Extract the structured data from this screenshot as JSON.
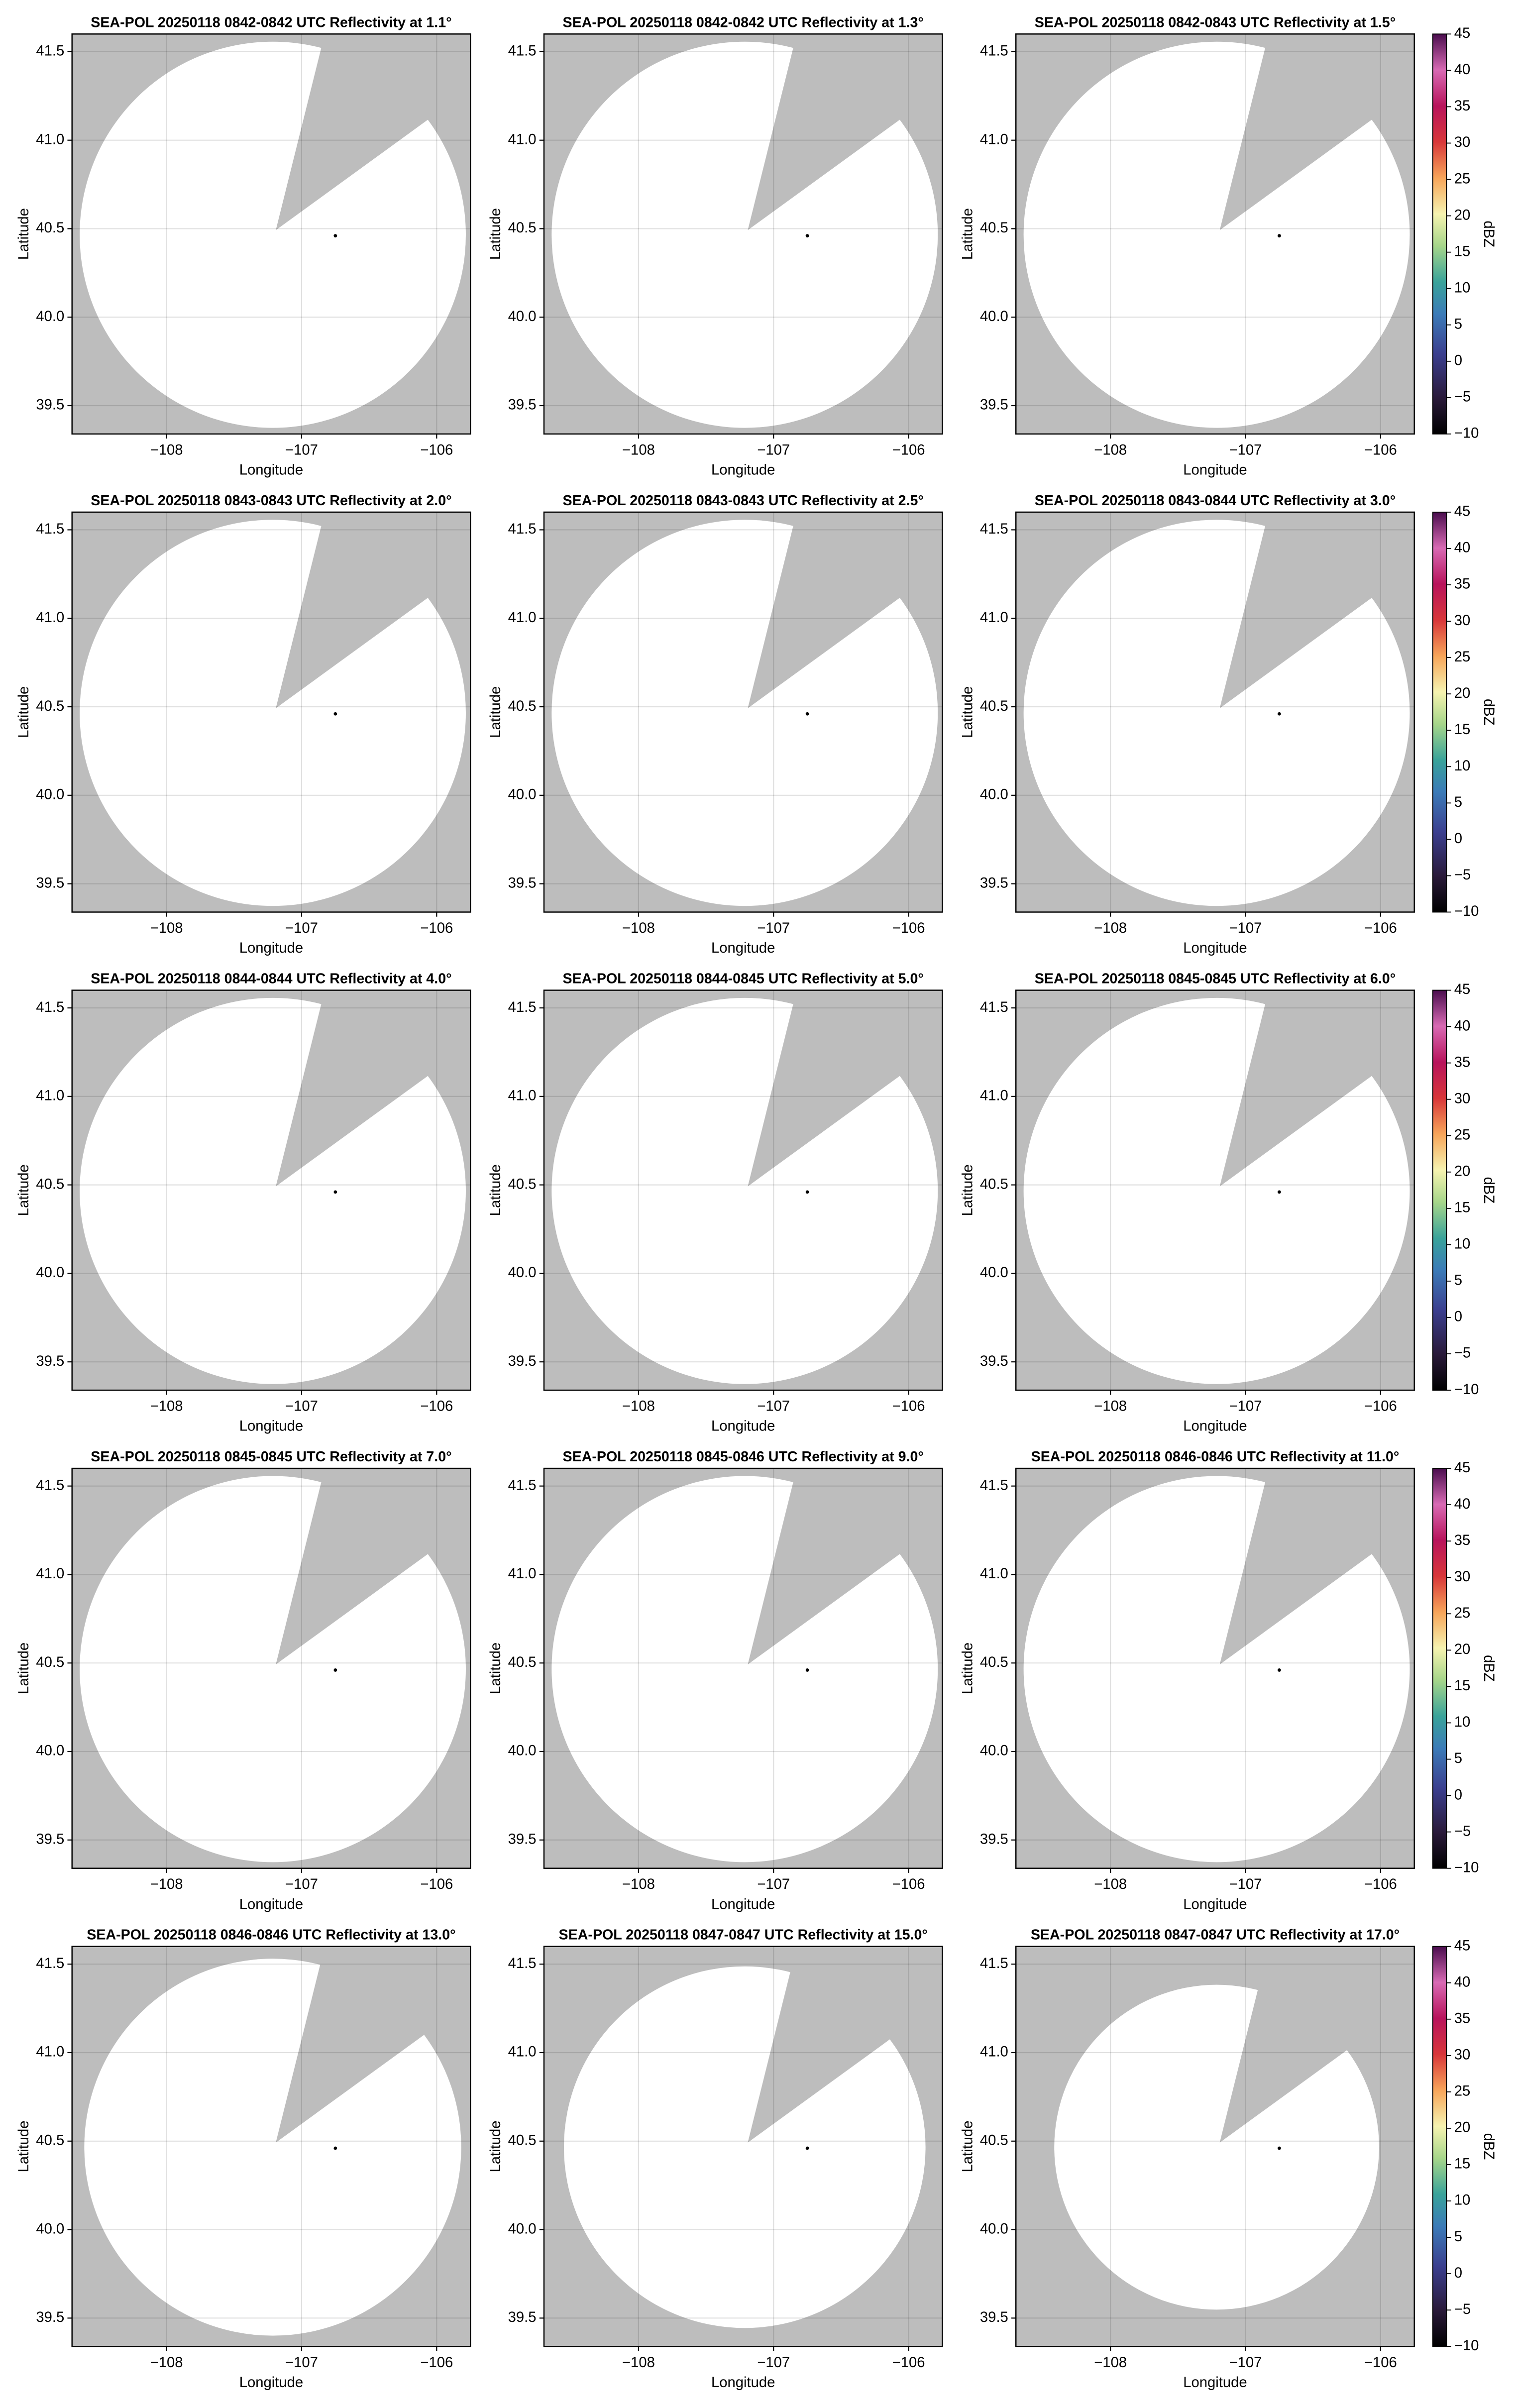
{
  "chart_data": [
    {
      "type": "radar-ppi",
      "title": "SEA-POL 20250118 0842-0842 UTC Reflectivity at 1.1°",
      "xlabel": "Longitude",
      "ylabel": "Latitude",
      "xlim": [
        -108.7,
        -105.75
      ],
      "ylim": [
        39.34,
        41.6
      ],
      "xticks": [
        {
          "value": -108,
          "label": "−108"
        },
        {
          "value": -107,
          "label": "−107"
        },
        {
          "value": -106,
          "label": "−106"
        }
      ],
      "yticks": [
        39.5,
        {
          "value": 40,
          "label": "40.0"
        },
        40.5,
        {
          "value": 41,
          "label": "41.0"
        },
        41.5
      ],
      "grid": true,
      "site": {
        "x": -106.75,
        "y": 40.46
      }
    },
    {
      "type": "radar-ppi",
      "title": "SEA-POL 20250118 0842-0842 UTC Reflectivity at 1.3°",
      "xlabel": "Longitude",
      "ylabel": "Latitude",
      "xlim": [
        -108.7,
        -105.75
      ],
      "ylim": [
        39.34,
        41.6
      ],
      "xticks": [
        {
          "value": -108,
          "label": "−108"
        },
        {
          "value": -107,
          "label": "−107"
        },
        {
          "value": -106,
          "label": "−106"
        }
      ],
      "yticks": [
        39.5,
        {
          "value": 40,
          "label": "40.0"
        },
        40.5,
        {
          "value": 41,
          "label": "41.0"
        },
        41.5
      ],
      "grid": true,
      "site": {
        "x": -106.75,
        "y": 40.46
      }
    },
    {
      "type": "radar-ppi",
      "title": "SEA-POL 20250118 0842-0843 UTC Reflectivity at 1.5°",
      "xlabel": "Longitude",
      "ylabel": "Latitude",
      "xlim": [
        -108.7,
        -105.75
      ],
      "ylim": [
        39.34,
        41.6
      ],
      "xticks": [
        {
          "value": -108,
          "label": "−108"
        },
        {
          "value": -107,
          "label": "−107"
        },
        {
          "value": -106,
          "label": "−106"
        }
      ],
      "yticks": [
        39.5,
        {
          "value": 40,
          "label": "40.0"
        },
        40.5,
        {
          "value": 41,
          "label": "41.0"
        },
        41.5
      ],
      "grid": true,
      "site": {
        "x": -106.75,
        "y": 40.46
      },
      "colorbar": {
        "label": "dBZ",
        "lim": [
          -10,
          45
        ],
        "ticks": [
          {
            "value": -10,
            "label": "−10"
          },
          {
            "value": -5,
            "label": "−5"
          },
          0,
          5,
          10,
          15,
          20,
          25,
          30,
          35,
          40,
          45
        ]
      }
    },
    {
      "type": "radar-ppi",
      "title": "SEA-POL 20250118 0843-0843 UTC Reflectivity at 2.0°",
      "xlabel": "Longitude",
      "ylabel": "Latitude",
      "xlim": [
        -108.7,
        -105.75
      ],
      "ylim": [
        39.34,
        41.6
      ],
      "xticks": [
        {
          "value": -108,
          "label": "−108"
        },
        {
          "value": -107,
          "label": "−107"
        },
        {
          "value": -106,
          "label": "−106"
        }
      ],
      "yticks": [
        39.5,
        {
          "value": 40,
          "label": "40.0"
        },
        40.5,
        {
          "value": 41,
          "label": "41.0"
        },
        41.5
      ],
      "grid": true,
      "site": {
        "x": -106.75,
        "y": 40.46
      }
    },
    {
      "type": "radar-ppi",
      "title": "SEA-POL 20250118 0843-0843 UTC Reflectivity at 2.5°",
      "xlabel": "Longitude",
      "ylabel": "Latitude",
      "xlim": [
        -108.7,
        -105.75
      ],
      "ylim": [
        39.34,
        41.6
      ],
      "xticks": [
        {
          "value": -108,
          "label": "−108"
        },
        {
          "value": -107,
          "label": "−107"
        },
        {
          "value": -106,
          "label": "−106"
        }
      ],
      "yticks": [
        39.5,
        {
          "value": 40,
          "label": "40.0"
        },
        40.5,
        {
          "value": 41,
          "label": "41.0"
        },
        41.5
      ],
      "grid": true,
      "site": {
        "x": -106.75,
        "y": 40.46
      }
    },
    {
      "type": "radar-ppi",
      "title": "SEA-POL 20250118 0843-0844 UTC Reflectivity at 3.0°",
      "xlabel": "Longitude",
      "ylabel": "Latitude",
      "xlim": [
        -108.7,
        -105.75
      ],
      "ylim": [
        39.34,
        41.6
      ],
      "xticks": [
        {
          "value": -108,
          "label": "−108"
        },
        {
          "value": -107,
          "label": "−107"
        },
        {
          "value": -106,
          "label": "−106"
        }
      ],
      "yticks": [
        39.5,
        {
          "value": 40,
          "label": "40.0"
        },
        40.5,
        {
          "value": 41,
          "label": "41.0"
        },
        41.5
      ],
      "grid": true,
      "site": {
        "x": -106.75,
        "y": 40.46
      },
      "colorbar": {
        "label": "dBZ",
        "lim": [
          -10,
          45
        ],
        "ticks": [
          {
            "value": -10,
            "label": "−10"
          },
          {
            "value": -5,
            "label": "−5"
          },
          0,
          5,
          10,
          15,
          20,
          25,
          30,
          35,
          40,
          45
        ]
      }
    },
    {
      "type": "radar-ppi",
      "title": "SEA-POL 20250118 0844-0844 UTC Reflectivity at 4.0°",
      "xlabel": "Longitude",
      "ylabel": "Latitude",
      "xlim": [
        -108.7,
        -105.75
      ],
      "ylim": [
        39.34,
        41.6
      ],
      "xticks": [
        {
          "value": -108,
          "label": "−108"
        },
        {
          "value": -107,
          "label": "−107"
        },
        {
          "value": -106,
          "label": "−106"
        }
      ],
      "yticks": [
        39.5,
        {
          "value": 40,
          "label": "40.0"
        },
        40.5,
        {
          "value": 41,
          "label": "41.0"
        },
        41.5
      ],
      "grid": true,
      "site": {
        "x": -106.75,
        "y": 40.46
      }
    },
    {
      "type": "radar-ppi",
      "title": "SEA-POL 20250118 0844-0845 UTC Reflectivity at 5.0°",
      "xlabel": "Longitude",
      "ylabel": "Latitude",
      "xlim": [
        -108.7,
        -105.75
      ],
      "ylim": [
        39.34,
        41.6
      ],
      "xticks": [
        {
          "value": -108,
          "label": "−108"
        },
        {
          "value": -107,
          "label": "−107"
        },
        {
          "value": -106,
          "label": "−106"
        }
      ],
      "yticks": [
        39.5,
        {
          "value": 40,
          "label": "40.0"
        },
        40.5,
        {
          "value": 41,
          "label": "41.0"
        },
        41.5
      ],
      "grid": true,
      "site": {
        "x": -106.75,
        "y": 40.46
      }
    },
    {
      "type": "radar-ppi",
      "title": "SEA-POL 20250118 0845-0845 UTC Reflectivity at 6.0°",
      "xlabel": "Longitude",
      "ylabel": "Latitude",
      "xlim": [
        -108.7,
        -105.75
      ],
      "ylim": [
        39.34,
        41.6
      ],
      "xticks": [
        {
          "value": -108,
          "label": "−108"
        },
        {
          "value": -107,
          "label": "−107"
        },
        {
          "value": -106,
          "label": "−106"
        }
      ],
      "yticks": [
        39.5,
        {
          "value": 40,
          "label": "40.0"
        },
        40.5,
        {
          "value": 41,
          "label": "41.0"
        },
        41.5
      ],
      "grid": true,
      "site": {
        "x": -106.75,
        "y": 40.46
      },
      "colorbar": {
        "label": "dBZ",
        "lim": [
          -10,
          45
        ],
        "ticks": [
          {
            "value": -10,
            "label": "−10"
          },
          {
            "value": -5,
            "label": "−5"
          },
          0,
          5,
          10,
          15,
          20,
          25,
          30,
          35,
          40,
          45
        ]
      }
    },
    {
      "type": "radar-ppi",
      "title": "SEA-POL 20250118 0845-0845 UTC Reflectivity at 7.0°",
      "xlabel": "Longitude",
      "ylabel": "Latitude",
      "xlim": [
        -108.7,
        -105.75
      ],
      "ylim": [
        39.34,
        41.6
      ],
      "xticks": [
        {
          "value": -108,
          "label": "−108"
        },
        {
          "value": -107,
          "label": "−107"
        },
        {
          "value": -106,
          "label": "−106"
        }
      ],
      "yticks": [
        39.5,
        {
          "value": 40,
          "label": "40.0"
        },
        40.5,
        {
          "value": 41,
          "label": "41.0"
        },
        41.5
      ],
      "grid": true,
      "site": {
        "x": -106.75,
        "y": 40.46
      }
    },
    {
      "type": "radar-ppi",
      "title": "SEA-POL 20250118 0845-0846 UTC Reflectivity at 9.0°",
      "xlabel": "Longitude",
      "ylabel": "Latitude",
      "xlim": [
        -108.7,
        -105.75
      ],
      "ylim": [
        39.34,
        41.6
      ],
      "xticks": [
        {
          "value": -108,
          "label": "−108"
        },
        {
          "value": -107,
          "label": "−107"
        },
        {
          "value": -106,
          "label": "−106"
        }
      ],
      "yticks": [
        39.5,
        {
          "value": 40,
          "label": "40.0"
        },
        40.5,
        {
          "value": 41,
          "label": "41.0"
        },
        41.5
      ],
      "grid": true,
      "site": {
        "x": -106.75,
        "y": 40.46
      }
    },
    {
      "type": "radar-ppi",
      "title": "SEA-POL 20250118 0846-0846 UTC Reflectivity at 11.0°",
      "xlabel": "Longitude",
      "ylabel": "Latitude",
      "xlim": [
        -108.7,
        -105.75
      ],
      "ylim": [
        39.34,
        41.6
      ],
      "xticks": [
        {
          "value": -108,
          "label": "−108"
        },
        {
          "value": -107,
          "label": "−107"
        },
        {
          "value": -106,
          "label": "−106"
        }
      ],
      "yticks": [
        39.5,
        {
          "value": 40,
          "label": "40.0"
        },
        40.5,
        {
          "value": 41,
          "label": "41.0"
        },
        41.5
      ],
      "grid": true,
      "site": {
        "x": -106.75,
        "y": 40.46
      },
      "colorbar": {
        "label": "dBZ",
        "lim": [
          -10,
          45
        ],
        "ticks": [
          {
            "value": -10,
            "label": "−10"
          },
          {
            "value": -5,
            "label": "−5"
          },
          0,
          5,
          10,
          15,
          20,
          25,
          30,
          35,
          40,
          45
        ]
      }
    },
    {
      "type": "radar-ppi",
      "title": "SEA-POL 20250118 0846-0846 UTC Reflectivity at 13.0°",
      "xlabel": "Longitude",
      "ylabel": "Latitude",
      "xlim": [
        -108.7,
        -105.75
      ],
      "ylim": [
        39.34,
        41.6
      ],
      "xticks": [
        {
          "value": -108,
          "label": "−108"
        },
        {
          "value": -107,
          "label": "−107"
        },
        {
          "value": -106,
          "label": "−106"
        }
      ],
      "yticks": [
        39.5,
        {
          "value": 40,
          "label": "40.0"
        },
        40.5,
        {
          "value": 41,
          "label": "41.0"
        },
        41.5
      ],
      "grid": true,
      "site": {
        "x": -106.75,
        "y": 40.46
      }
    },
    {
      "type": "radar-ppi",
      "title": "SEA-POL 20250118 0847-0847 UTC Reflectivity at 15.0°",
      "xlabel": "Longitude",
      "ylabel": "Latitude",
      "xlim": [
        -108.7,
        -105.75
      ],
      "ylim": [
        39.34,
        41.6
      ],
      "xticks": [
        {
          "value": -108,
          "label": "−108"
        },
        {
          "value": -107,
          "label": "−107"
        },
        {
          "value": -106,
          "label": "−106"
        }
      ],
      "yticks": [
        39.5,
        {
          "value": 40,
          "label": "40.0"
        },
        40.5,
        {
          "value": 41,
          "label": "41.0"
        },
        41.5
      ],
      "grid": true,
      "site": {
        "x": -106.75,
        "y": 40.46
      }
    },
    {
      "type": "radar-ppi",
      "title": "SEA-POL 20250118 0847-0847 UTC Reflectivity at 17.0°",
      "xlabel": "Longitude",
      "ylabel": "Latitude",
      "xlim": [
        -108.7,
        -105.75
      ],
      "ylim": [
        39.34,
        41.6
      ],
      "xticks": [
        {
          "value": -108,
          "label": "−108"
        },
        {
          "value": -107,
          "label": "−107"
        },
        {
          "value": -106,
          "label": "−106"
        }
      ],
      "yticks": [
        39.5,
        {
          "value": 40,
          "label": "40.0"
        },
        40.5,
        {
          "value": 41,
          "label": "41.0"
        },
        41.5
      ],
      "grid": true,
      "site": {
        "x": -106.75,
        "y": 40.46
      },
      "colorbar": {
        "label": "dBZ",
        "lim": [
          -10,
          45
        ],
        "ticks": [
          {
            "value": -10,
            "label": "−10"
          },
          {
            "value": -5,
            "label": "−5"
          },
          0,
          5,
          10,
          15,
          20,
          25,
          30,
          35,
          40,
          45
        ]
      }
    }
  ]
}
